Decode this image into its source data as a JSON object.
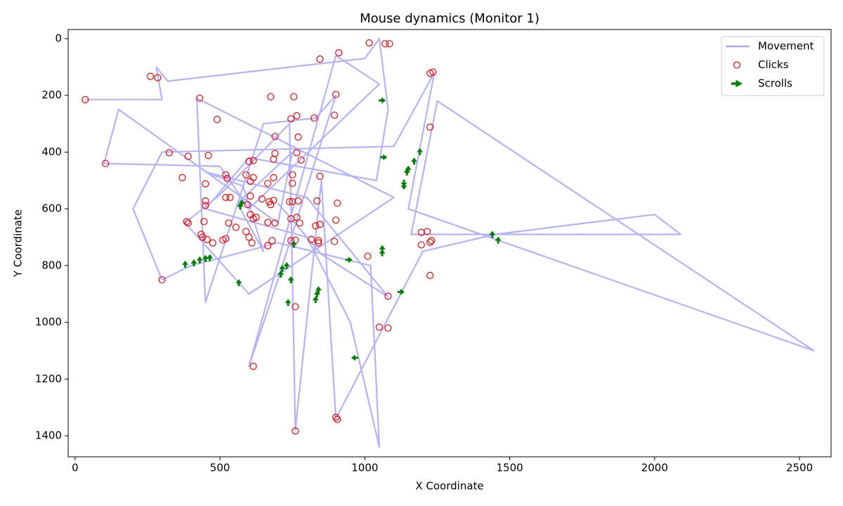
{
  "chart_data": {
    "type": "scatter",
    "title": "Mouse dynamics (Monitor 1)",
    "xlabel": "X Coordinate",
    "ylabel": "Y Coordinate",
    "xlim": [
      -24,
      2609
    ],
    "ylim": [
      -32,
      1474
    ],
    "y_inverted": true,
    "xticks": [
      0,
      500,
      1000,
      1500,
      2000,
      2500
    ],
    "yticks": [
      0,
      200,
      400,
      600,
      800,
      1000,
      1200,
      1400
    ],
    "legend": "upper right",
    "series": [
      {
        "name": "Movement",
        "type": "line",
        "color": "#aaaaff",
        "x": [
          35,
          300,
          280,
          320,
          1000,
          1050,
          1080,
          1040,
          600,
          450,
          800,
          950,
          1050,
          1020,
          700,
          400,
          300,
          200,
          300,
          1100,
          1240,
          1150,
          2550,
          1250,
          1160,
          2090,
          2000,
          1450,
          1200,
          900,
          850,
          760,
          740,
          500,
          380,
          600,
          1100,
          420,
          450,
          650,
          830,
          900,
          700,
          600,
          900,
          1050,
          600,
          500,
          100,
          150,
          700,
          750,
          560,
          650,
          580,
          450,
          800,
          1080,
          850,
          700
        ],
        "values": [
          215,
          215,
          100,
          150,
          70,
          0,
          250,
          500,
          420,
          600,
          700,
          1000,
          1440,
          800,
          720,
          800,
          850,
          600,
          400,
          380,
          120,
          600,
          1100,
          220,
          690,
          690,
          620,
          690,
          750,
          1340,
          500,
          1380,
          300,
          550,
          650,
          900,
          560,
          210,
          930,
          300,
          280,
          200,
          850,
          1155,
          60,
          160,
          600,
          450,
          440,
          250,
          650,
          400,
          580,
          750,
          520,
          470,
          560,
          910,
          760,
          580
        ]
      },
      {
        "name": "Clicks",
        "type": "scatter",
        "color": "#ff0000",
        "x": [
          35,
          260,
          285,
          845,
          910,
          1015,
          1070,
          1085,
          1225,
          1235,
          430,
          675,
          755,
          900,
          490,
          765,
          745,
          825,
          895,
          1225,
          690,
          770,
          325,
          390,
          460,
          690,
          765,
          685,
          780,
          600,
          615,
          105,
          370,
          450,
          520,
          525,
          590,
          605,
          615,
          685,
          750,
          845,
          750,
          665,
          605,
          645,
          520,
          535,
          450,
          450,
          595,
          670,
          685,
          675,
          740,
          750,
          770,
          835,
          905,
          555,
          605,
          615,
          625,
          690,
          745,
          765,
          775,
          830,
          845,
          900,
          385,
          390,
          445,
          530,
          590,
          665,
          435,
          440,
          455,
          475,
          510,
          520,
          600,
          610,
          665,
          680,
          745,
          760,
          840,
          840,
          815,
          895,
          1010,
          1195,
          1215,
          1195,
          1230,
          1225,
          1225,
          300,
          1080,
          760,
          1050,
          1080,
          615,
          900,
          905,
          760
        ],
        "values": [
          215,
          133,
          138,
          72,
          50,
          15,
          18,
          18,
          122,
          118,
          210,
          205,
          205,
          197,
          285,
          272,
          283,
          280,
          270,
          312,
          345,
          347,
          402,
          415,
          412,
          405,
          402,
          425,
          428,
          433,
          430,
          440,
          490,
          512,
          480,
          493,
          480,
          503,
          490,
          490,
          480,
          485,
          510,
          510,
          555,
          565,
          560,
          560,
          572,
          588,
          585,
          575,
          570,
          585,
          575,
          575,
          572,
          572,
          580,
          665,
          620,
          635,
          630,
          650,
          635,
          630,
          650,
          660,
          655,
          640,
          645,
          650,
          645,
          650,
          680,
          648,
          690,
          700,
          708,
          720,
          710,
          705,
          700,
          720,
          730,
          712,
          712,
          710,
          712,
          720,
          708,
          715,
          767,
          683,
          680,
          727,
          712,
          718,
          835,
          850,
          908,
          945,
          1017,
          1020,
          1155,
          1335,
          1342,
          1383
        ]
      },
      {
        "name": "Scrolls",
        "type": "quiver",
        "color": "#008000",
        "x": [
          1060,
          1065,
          1190,
          1170,
          1150,
          1145,
          1135,
          1135,
          1440,
          1460,
          570,
          575,
          380,
          410,
          430,
          450,
          465,
          565,
          710,
          715,
          730,
          745,
          735,
          755,
          830,
          835,
          840,
          945,
          1060,
          1060,
          1125,
          965
        ],
        "values": [
          218,
          418,
          398,
          432,
          460,
          470,
          510,
          520,
          690,
          710,
          590,
          580,
          795,
          790,
          780,
          775,
          772,
          860,
          830,
          810,
          800,
          850,
          930,
          725,
          920,
          900,
          885,
          780,
          755,
          740,
          893,
          1125
        ],
        "direction": [
          "right",
          "right",
          "up",
          "up",
          "up",
          "up",
          "down",
          "down",
          "up",
          "up",
          "up",
          "up",
          "up",
          "up",
          "up",
          "up",
          "up",
          "up",
          "up",
          "up",
          "up",
          "up",
          "up",
          "up",
          "up",
          "up",
          "up",
          "right",
          "up",
          "up",
          "right",
          "left"
        ]
      }
    ]
  }
}
